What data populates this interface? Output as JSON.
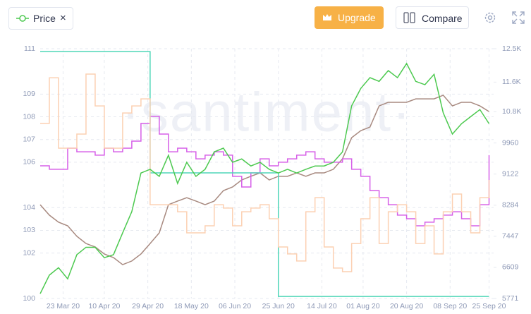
{
  "header": {
    "upgrade": "Upgrade",
    "compare": "Compare",
    "close": "×"
  },
  "chart_data": {
    "type": "line",
    "watermark": "·santiment·",
    "x": [
      "2020-03-13",
      "2020-03-17",
      "2020-03-21",
      "2020-03-25",
      "2020-03-29",
      "2020-04-02",
      "2020-04-06",
      "2020-04-10",
      "2020-04-14",
      "2020-04-18",
      "2020-04-22",
      "2020-04-26",
      "2020-04-30",
      "2020-05-04",
      "2020-05-08",
      "2020-05-12",
      "2020-05-16",
      "2020-05-20",
      "2020-05-24",
      "2020-05-28",
      "2020-06-01",
      "2020-06-05",
      "2020-06-09",
      "2020-06-13",
      "2020-06-17",
      "2020-06-21",
      "2020-06-25",
      "2020-06-29",
      "2020-07-03",
      "2020-07-07",
      "2020-07-11",
      "2020-07-15",
      "2020-07-19",
      "2020-07-23",
      "2020-07-27",
      "2020-07-31",
      "2020-08-04",
      "2020-08-08",
      "2020-08-12",
      "2020-08-16",
      "2020-08-20",
      "2020-08-24",
      "2020-08-28",
      "2020-09-01",
      "2020-09-05",
      "2020-09-09",
      "2020-09-13",
      "2020-09-17",
      "2020-09-21",
      "2020-09-25"
    ],
    "xlim": [
      "2020-03-13",
      "2020-09-27"
    ],
    "xticks": [
      {
        "value": "2020-03-23",
        "label": "23 Mar 20"
      },
      {
        "value": "2020-04-10",
        "label": "10 Apr 20"
      },
      {
        "value": "2020-04-29",
        "label": "29 Apr 20"
      },
      {
        "value": "2020-05-18",
        "label": "18 May 20"
      },
      {
        "value": "2020-06-06",
        "label": "06 Jun 20"
      },
      {
        "value": "2020-06-25",
        "label": "25 Jun 20"
      },
      {
        "value": "2020-07-14",
        "label": "14 Jul 20"
      },
      {
        "value": "2020-08-01",
        "label": "01 Aug 20"
      },
      {
        "value": "2020-08-20",
        "label": "20 Aug 20"
      },
      {
        "value": "2020-09-08",
        "label": "08 Sep 20"
      },
      {
        "value": "2020-09-25",
        "label": "25 Sep 20"
      }
    ],
    "ylim": [
      100,
      111
    ],
    "yticks": [
      100,
      102,
      103,
      104,
      106,
      107,
      108,
      109,
      111
    ],
    "y2lim": [
      5771,
      12500
    ],
    "y2ticks": [
      5771,
      6609,
      7447,
      8284,
      9122,
      9960,
      {
        "value": 10800,
        "label": "10.8K"
      },
      {
        "value": 11600,
        "label": "11.6K"
      },
      {
        "value": 12500,
        "label": "12.5K"
      }
    ],
    "grid": true,
    "series": [
      {
        "name": "Price",
        "color": "#4cc94f",
        "axis": "y2",
        "values": [
          5900,
          6400,
          6600,
          6300,
          6950,
          7150,
          7150,
          6870,
          6950,
          7538,
          8110,
          9150,
          9250,
          9060,
          9630,
          8870,
          9440,
          9060,
          9250,
          9720,
          9820,
          9440,
          9530,
          9340,
          9440,
          9250,
          9150,
          9250,
          9150,
          9250,
          9340,
          9340,
          9440,
          9720,
          10960,
          11430,
          11720,
          11620,
          11910,
          11720,
          12100,
          11620,
          11530,
          11810,
          10770,
          10200,
          10480,
          10670,
          10860,
          10480
        ]
      },
      {
        "color": "#fcd0b2",
        "step": true,
        "values": [
          107.71,
          109.72,
          106.62,
          106.62,
          107.24,
          109.88,
          108.48,
          106.62,
          106.62,
          108.17,
          108.48,
          108.79,
          104.13,
          104.13,
          104.13,
          103.82,
          102.89,
          102.89,
          103.2,
          104.13,
          103.98,
          103.2,
          103.82,
          103.98,
          104.13,
          103.51,
          102.27,
          101.96,
          101.65,
          103.82,
          104.44,
          102.27,
          101.34,
          101.18,
          102.42,
          103.51,
          104.44,
          102.42,
          103.82,
          104.13,
          103.82,
          102.42,
          103.2,
          101.96,
          103.82,
          104.6,
          103.82,
          102.89,
          104.44,
          105.22
        ]
      },
      {
        "color": "#4fd6b8",
        "step": true,
        "values": [
          110.87,
          110.87,
          110.87,
          110.87,
          110.87,
          110.87,
          110.87,
          110.87,
          110.87,
          110.87,
          110.87,
          110.87,
          105.53,
          105.53,
          105.53,
          105.53,
          105.53,
          105.53,
          105.53,
          105.53,
          105.53,
          105.53,
          105.53,
          105.53,
          105.53,
          105.53,
          100.09,
          100.09,
          100.09,
          100.09,
          100.09,
          100.09,
          100.09,
          100.09,
          100.09,
          100.09,
          100.09,
          100.09,
          100.09,
          100.09,
          100.09,
          100.09,
          100.09,
          100.09,
          100.09,
          100.09,
          100.09,
          100.09,
          100.09,
          100.09
        ]
      },
      {
        "color": "#d65fe8",
        "step": true,
        "values": [
          105.84,
          105.69,
          105.69,
          106.62,
          106.46,
          106.46,
          106.31,
          106.62,
          106.46,
          106.62,
          106.93,
          107.71,
          108.02,
          107.24,
          106.46,
          106.62,
          106.46,
          106.15,
          106.31,
          106.46,
          106.31,
          105.38,
          104.91,
          105.53,
          106.15,
          105.84,
          106.0,
          106.15,
          106.31,
          106.46,
          106.15,
          106.0,
          106.0,
          106.15,
          105.69,
          105.38,
          104.75,
          104.44,
          104.13,
          103.67,
          103.51,
          103.2,
          103.36,
          103.51,
          103.67,
          103.82,
          103.51,
          103.2,
          104.13,
          106.31
        ]
      },
      {
        "color": "#a88a80",
        "values": [
          104.13,
          103.67,
          103.36,
          103.2,
          102.74,
          102.42,
          102.27,
          101.96,
          101.8,
          101.49,
          101.65,
          101.96,
          102.42,
          102.89,
          104.13,
          104.29,
          104.44,
          104.29,
          104.13,
          104.29,
          104.75,
          104.91,
          105.22,
          105.38,
          105.53,
          105.22,
          105.38,
          105.38,
          105.53,
          105.38,
          105.53,
          105.53,
          105.69,
          106.15,
          107.08,
          107.39,
          107.55,
          108.48,
          108.64,
          108.64,
          108.64,
          108.79,
          108.79,
          108.79,
          108.95,
          108.48,
          108.64,
          108.64,
          108.48,
          108.23
        ]
      }
    ]
  }
}
